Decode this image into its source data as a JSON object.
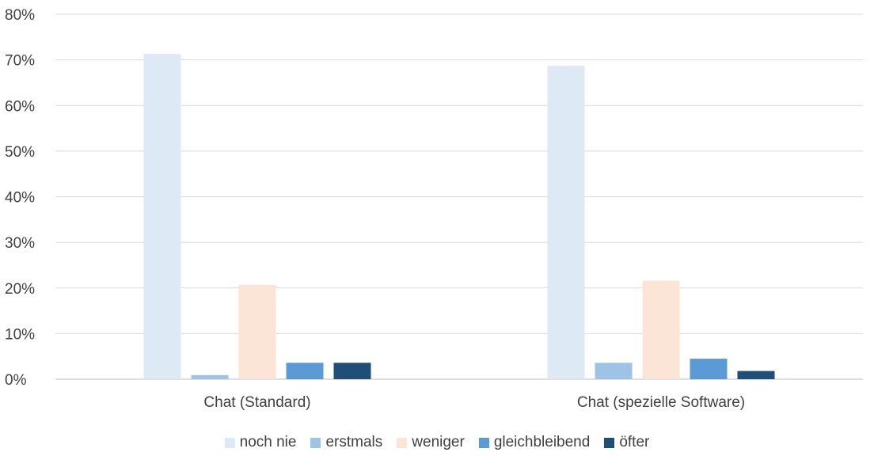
{
  "chart_data": {
    "type": "bar",
    "categories": [
      "Chat (Standard)",
      "Chat (spezielle Software)"
    ],
    "series": [
      {
        "name": "noch nie",
        "color": "#dde9f5",
        "values": [
          71.3,
          68.7
        ]
      },
      {
        "name": "erstmals",
        "color": "#9dc3e6",
        "values": [
          0.9,
          3.6
        ]
      },
      {
        "name": "weniger",
        "color": "#fbe5d6",
        "values": [
          20.7,
          21.6
        ]
      },
      {
        "name": "gleichbleibend",
        "color": "#5b9bd5",
        "values": [
          3.6,
          4.5
        ]
      },
      {
        "name": "öfter",
        "color": "#1f4e79",
        "values": [
          3.6,
          1.8
        ]
      }
    ],
    "y_ticks": [
      "0%",
      "10%",
      "20%",
      "30%",
      "40%",
      "50%",
      "60%",
      "70%",
      "80%"
    ],
    "ylim": [
      0,
      80
    ],
    "grid": true,
    "legend_position": "bottom",
    "title": "",
    "xlabel": "",
    "ylabel": ""
  }
}
